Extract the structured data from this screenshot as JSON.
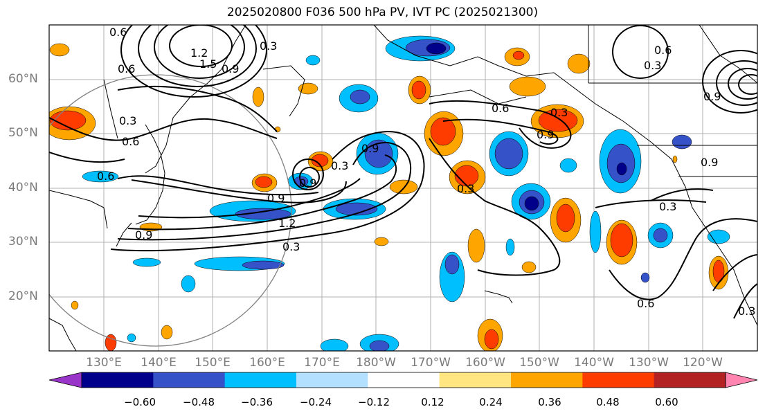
{
  "title": "2025020800 F036 500 hPa PV, IVT PC (2025021300)",
  "lat_labels": [
    "60°N",
    "50°N",
    "40°N",
    "30°N",
    "20°N"
  ],
  "lon_labels": [
    "130°E",
    "140°E",
    "150°E",
    "160°E",
    "170°E",
    "180°W",
    "170°W",
    "160°W",
    "150°W",
    "140°W",
    "130°W",
    "120°W"
  ],
  "contour_labels": [
    "0.6",
    "1.2",
    "1.5",
    "0.6",
    "0.9",
    "0.3",
    "0.6",
    "0.9",
    "0.3",
    "0.6",
    "0.9",
    "0.9",
    "0.3",
    "0.9",
    "1.2",
    "0.3",
    "0.3",
    "0.6",
    "0.3",
    "0.6",
    "0.9",
    "0.3",
    "0.9",
    "0.6",
    "0.3",
    "0.9",
    "0.3"
  ],
  "colorbar": {
    "ticks": [
      "−0.60",
      "−0.48",
      "−0.36",
      "−0.24",
      "−0.12",
      "0.12",
      "0.24",
      "0.36",
      "0.48",
      "0.60"
    ],
    "colors": [
      "#9a35c9",
      "#00008b",
      "#3552c9",
      "#00bfff",
      "#b3e0ff",
      "#ffffff",
      "#ffe680",
      "#ffa500",
      "#ff3c00",
      "#b22222",
      "#ff85b0"
    ]
  }
}
